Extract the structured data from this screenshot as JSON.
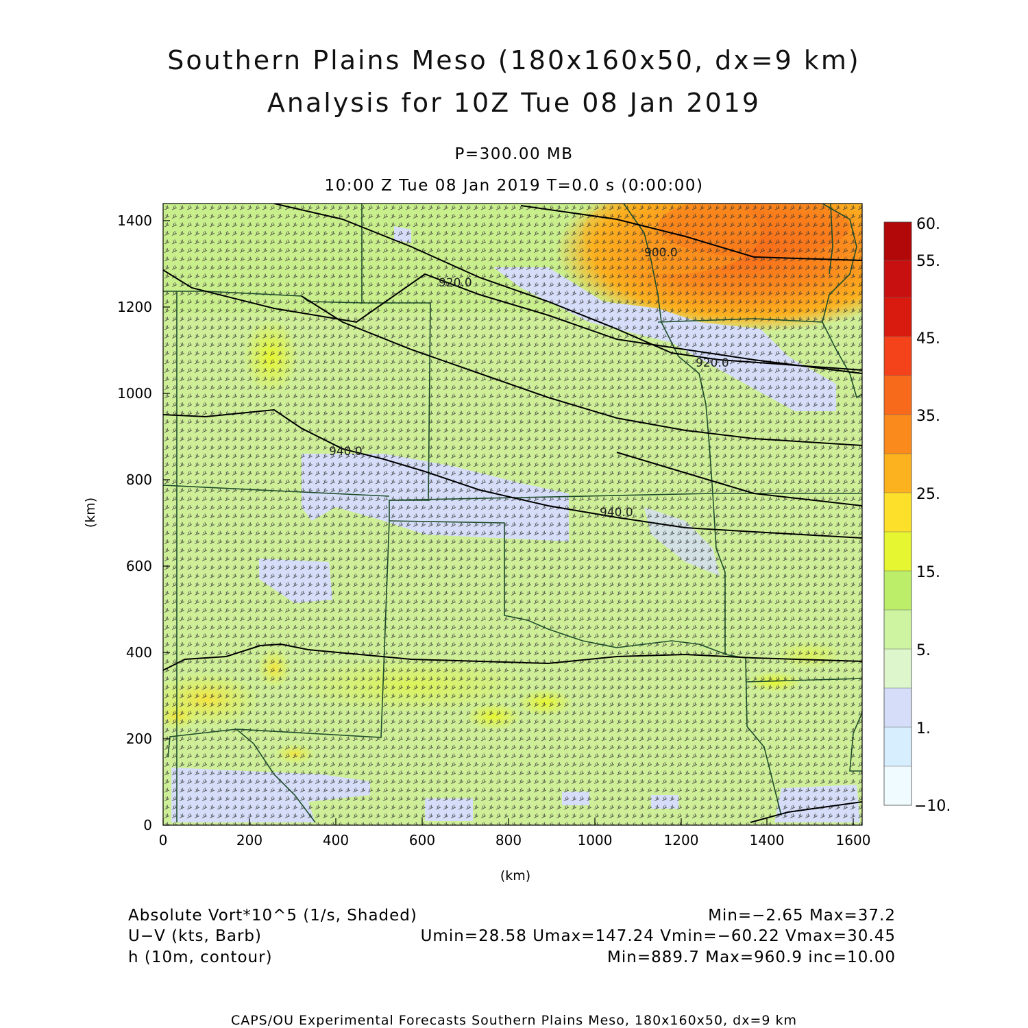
{
  "header": {
    "title_line1": "Southern Plains Meso (180x160x50, dx=9 km)",
    "title_line2": "Analysis for 10Z Tue 08 Jan 2019",
    "level": "P=300.00 MB",
    "time": "10:00 Z Tue 08 Jan 2019    T=0.0 s (0:00:00)"
  },
  "axes": {
    "x_unit": "(km)",
    "y_unit": "(km)",
    "x_ticks": [
      "0",
      "200",
      "400",
      "600",
      "800",
      "1000",
      "1200",
      "1400",
      "1600"
    ],
    "y_ticks": [
      "0",
      "200",
      "400",
      "600",
      "800",
      "1000",
      "1200",
      "1400"
    ],
    "x_range": [
      0,
      1620
    ],
    "y_range": [
      0,
      1440
    ]
  },
  "colorbar": {
    "labels": [
      "60.",
      "55.",
      "45.",
      "35.",
      "25.",
      "15.",
      "5.",
      "1.",
      "−10."
    ],
    "colors": [
      "#f0fbff",
      "#d7eeff",
      "#d5ddf8",
      "#ddf6cc",
      "#cef4a2",
      "#bcee6a",
      "#e6f630",
      "#fde02a",
      "#fcb11f",
      "#fb8a1d",
      "#f86a1b",
      "#f4421a",
      "#d81a0f",
      "#b30809"
    ]
  },
  "contour_labels": [
    "900.0",
    "920.0",
    "920.0",
    "940.0",
    "940.0"
  ],
  "legend": {
    "row1_left": "Absolute Vort*10^5 (1/s, Shaded)",
    "row1_right": "Min=−2.65 Max=37.2",
    "row2_left": "U−V (kts, Barb)",
    "row2_right": "Umin=28.58 Umax=147.24 Vmin=−60.22 Vmax=30.45",
    "row3_left": "h (10m, contour)",
    "row3_right": "Min=889.7 Max=960.9 inc=10.00"
  },
  "footer": "CAPS/OU Experimental Forecasts  Southern Plains Meso, 180x160x50, dx=9 km"
}
